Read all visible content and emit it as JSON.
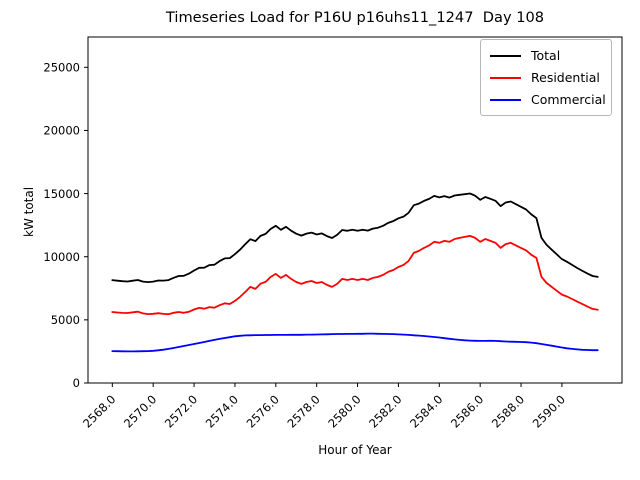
{
  "chart_data": {
    "type": "line",
    "title": "Timeseries Load for P16U p16uhs11_1247  Day 108",
    "xlabel": "Hour of Year",
    "ylabel": "kW total",
    "xlim": [
      2566.81,
      2592.94
    ],
    "ylim": [
      0,
      27400
    ],
    "grid": false,
    "legend_position": "upper right",
    "xticks": {
      "values": [
        2568,
        2570,
        2572,
        2574,
        2576,
        2578,
        2580,
        2582,
        2584,
        2586,
        2588,
        2590
      ],
      "labels": [
        "2568.0",
        "2570.0",
        "2572.0",
        "2574.0",
        "2576.0",
        "2578.0",
        "2580.0",
        "2582.0",
        "2584.0",
        "2586.0",
        "2588.0",
        "2590.0"
      ]
    },
    "yticks": {
      "values": [
        0,
        5000,
        10000,
        15000,
        20000,
        25000
      ],
      "labels": [
        "0",
        "5000",
        "10000",
        "15000",
        "20000",
        "25000"
      ]
    },
    "x_start": 2568.0,
    "x_step": 0.25,
    "series": [
      {
        "name": "Total",
        "color": "#000000",
        "values": [
          8150,
          8100,
          8060,
          8040,
          8100,
          8160,
          8030,
          7990,
          8030,
          8120,
          8110,
          8150,
          8330,
          8470,
          8490,
          8660,
          8910,
          9120,
          9130,
          9340,
          9370,
          9650,
          9870,
          9890,
          10200,
          10560,
          10980,
          11390,
          11240,
          11650,
          11810,
          12200,
          12450,
          12130,
          12370,
          12060,
          11820,
          11670,
          11830,
          11910,
          11760,
          11850,
          11630,
          11480,
          11730,
          12120,
          12050,
          12130,
          12060,
          12140,
          12070,
          12230,
          12300,
          12450,
          12680,
          12820,
          13040,
          13180,
          13480,
          14080,
          14210,
          14420,
          14580,
          14820,
          14700,
          14800,
          14680,
          14850,
          14900,
          14950,
          15010,
          14830,
          14510,
          14730,
          14590,
          14430,
          14010,
          14290,
          14370,
          14160,
          13950,
          13730,
          13350,
          13060,
          11490,
          10940,
          10560,
          10180,
          9810,
          9600,
          9350,
          9110,
          8880,
          8660,
          8470,
          8400
        ]
      },
      {
        "name": "Residential",
        "color": "#ff0000",
        "values": [
          5620,
          5580,
          5550,
          5540,
          5600,
          5650,
          5510,
          5460,
          5480,
          5530,
          5470,
          5450,
          5560,
          5620,
          5560,
          5650,
          5820,
          5950,
          5880,
          6010,
          5960,
          6160,
          6310,
          6260,
          6500,
          6820,
          7210,
          7610,
          7450,
          7860,
          8010,
          8400,
          8640,
          8320,
          8560,
          8240,
          8000,
          7850,
          8000,
          8080,
          7920,
          8000,
          7770,
          7610,
          7850,
          8240,
          8160,
          8240,
          8160,
          8240,
          8160,
          8320,
          8400,
          8560,
          8800,
          8950,
          9190,
          9350,
          9670,
          10300,
          10460,
          10700,
          10900,
          11180,
          11100,
          11250,
          11180,
          11400,
          11490,
          11570,
          11650,
          11490,
          11180,
          11400,
          11250,
          11100,
          10700,
          11000,
          11100,
          10900,
          10700,
          10500,
          10150,
          9910,
          8400,
          7920,
          7610,
          7300,
          7000,
          6850,
          6650,
          6450,
          6250,
          6050,
          5870,
          5800
        ]
      },
      {
        "name": "Commercial",
        "color": "#0000ff",
        "values": [
          2530,
          2520,
          2510,
          2500,
          2500,
          2510,
          2520,
          2530,
          2550,
          2590,
          2640,
          2700,
          2770,
          2850,
          2930,
          3010,
          3090,
          3170,
          3250,
          3330,
          3410,
          3490,
          3560,
          3630,
          3700,
          3740,
          3770,
          3780,
          3790,
          3790,
          3800,
          3800,
          3810,
          3810,
          3810,
          3820,
          3820,
          3820,
          3830,
          3830,
          3840,
          3850,
          3860,
          3870,
          3880,
          3880,
          3890,
          3890,
          3900,
          3900,
          3910,
          3910,
          3900,
          3890,
          3880,
          3870,
          3850,
          3830,
          3810,
          3780,
          3750,
          3720,
          3680,
          3640,
          3600,
          3550,
          3500,
          3450,
          3410,
          3380,
          3360,
          3340,
          3330,
          3330,
          3340,
          3330,
          3310,
          3290,
          3270,
          3260,
          3250,
          3230,
          3200,
          3150,
          3090,
          3020,
          2950,
          2880,
          2810,
          2750,
          2700,
          2660,
          2630,
          2610,
          2600,
          2600
        ]
      }
    ]
  }
}
